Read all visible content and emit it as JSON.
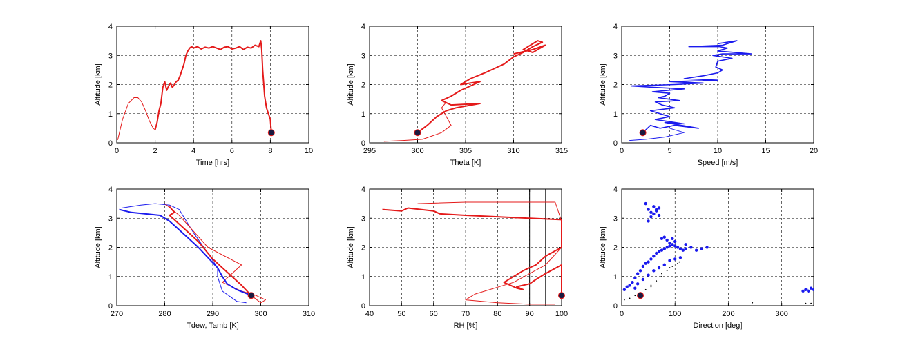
{
  "colors": {
    "red": "#e41a1a",
    "blue": "#1a1aee",
    "marker": "#1a1a40",
    "black": "#000000"
  },
  "chart_data": [
    {
      "type": "line",
      "xlabel": "Time [hrs]",
      "ylabel": "Altitude [km]",
      "xlim": [
        0,
        10
      ],
      "ylim": [
        0,
        4
      ],
      "xticks": [
        0,
        2,
        4,
        6,
        8,
        10
      ],
      "yticks": [
        0,
        1,
        2,
        3,
        4
      ],
      "grid": true,
      "series": [
        {
          "color": "red",
          "width": 1,
          "x": [
            0.05,
            0.3,
            0.6,
            0.9,
            1.1,
            1.3,
            1.5,
            1.7,
            1.9,
            2.0
          ],
          "y": [
            0.1,
            0.8,
            1.35,
            1.55,
            1.55,
            1.4,
            1.1,
            0.75,
            0.5,
            0.45
          ]
        },
        {
          "color": "red",
          "width": 2,
          "x": [
            2.0,
            2.1,
            2.2,
            2.3,
            2.4,
            2.5,
            2.6,
            2.7,
            2.8,
            2.9,
            3.0,
            3.1,
            3.2,
            3.3,
            3.5,
            3.6,
            3.7,
            3.8,
            3.9,
            4.0,
            4.2,
            4.4,
            4.6,
            4.8,
            5.0,
            5.2,
            5.4,
            5.6,
            5.8,
            6.0,
            6.2,
            6.4,
            6.6,
            6.8,
            7.0,
            7.2,
            7.4,
            7.5,
            7.55,
            7.6,
            7.7,
            7.8,
            7.9,
            8.0,
            8.05
          ],
          "y": [
            0.45,
            0.7,
            1.1,
            1.35,
            1.9,
            2.1,
            1.8,
            1.95,
            2.05,
            1.9,
            2.0,
            2.1,
            2.15,
            2.3,
            2.7,
            3.0,
            3.15,
            3.25,
            3.3,
            3.25,
            3.3,
            3.22,
            3.28,
            3.25,
            3.3,
            3.25,
            3.2,
            3.28,
            3.3,
            3.22,
            3.25,
            3.3,
            3.2,
            3.28,
            3.25,
            3.35,
            3.3,
            3.5,
            3.2,
            2.5,
            1.6,
            1.2,
            1.0,
            0.8,
            0.35
          ]
        }
      ],
      "marker": {
        "x": 8.05,
        "y": 0.35
      }
    },
    {
      "type": "line",
      "xlabel": "Theta [K]",
      "ylabel": "Altitude [km]",
      "xlim": [
        295,
        315
      ],
      "ylim": [
        0,
        4
      ],
      "xticks": [
        295,
        300,
        305,
        310,
        315
      ],
      "yticks": [
        0,
        1,
        2,
        3,
        4
      ],
      "grid": true,
      "series": [
        {
          "color": "red",
          "width": 1,
          "x": [
            296.5,
            298.5,
            300.5,
            302.5,
            303.5,
            303.0,
            302.5,
            303.0
          ],
          "y": [
            0.05,
            0.08,
            0.12,
            0.35,
            0.6,
            0.9,
            1.2,
            1.4
          ]
        },
        {
          "color": "red",
          "width": 2,
          "x": [
            300,
            301,
            302,
            303,
            304,
            306.5,
            303.5,
            302.5,
            303.5,
            304.5,
            305.5,
            306.5,
            304.5,
            305.5,
            307,
            309,
            310,
            311,
            312,
            313,
            312.5,
            311,
            312,
            313.3,
            312,
            310
          ],
          "y": [
            0.35,
            0.6,
            0.9,
            1.1,
            1.2,
            1.35,
            1.3,
            1.45,
            1.6,
            1.8,
            1.95,
            2.1,
            2.0,
            2.2,
            2.4,
            2.7,
            2.95,
            3.1,
            3.3,
            3.45,
            3.5,
            3.2,
            3.1,
            3.35,
            3.2,
            3.05
          ]
        }
      ],
      "marker": {
        "x": 300,
        "y": 0.35
      }
    },
    {
      "type": "line",
      "xlabel": "Speed [m/s]",
      "ylabel": "Altitude [km]",
      "xlim": [
        0,
        20
      ],
      "ylim": [
        0,
        4
      ],
      "xticks": [
        0,
        5,
        10,
        15,
        20
      ],
      "yticks": [
        0,
        1,
        2,
        3,
        4
      ],
      "grid": true,
      "series": [
        {
          "color": "blue",
          "width": 1,
          "x": [
            0.8,
            2.5,
            4.5,
            6.5,
            5.0
          ],
          "y": [
            0.08,
            0.12,
            0.2,
            0.35,
            0.5
          ]
        },
        {
          "color": "blue",
          "width": 1.6,
          "x": [
            2.2,
            3.0,
            4.0,
            5.5,
            8.0,
            4.5,
            6.5,
            3.5,
            5.0,
            4.0,
            3.0,
            5.5,
            4.2,
            3.5,
            6.0,
            3.8,
            4.5,
            5.0,
            3.2,
            4.8,
            6.5,
            3.5,
            1.0,
            5.5,
            8.5,
            5.0,
            10.0,
            6.5,
            8.5,
            10.0,
            10.5,
            9.8,
            10.0,
            11.5,
            9.5,
            10.5,
            13.5,
            10.0,
            11.0,
            10.2,
            7.0,
            10.5,
            12.0,
            10.0
          ],
          "y": [
            0.35,
            0.6,
            0.5,
            0.6,
            0.5,
            0.7,
            0.65,
            0.8,
            0.9,
            1.0,
            1.1,
            1.2,
            1.3,
            1.4,
            1.45,
            1.55,
            1.6,
            1.7,
            1.75,
            1.8,
            1.85,
            1.9,
            1.95,
            2.0,
            2.05,
            2.1,
            2.15,
            2.2,
            2.3,
            2.4,
            2.5,
            2.6,
            2.8,
            2.9,
            3.0,
            3.05,
            3.05,
            3.15,
            3.25,
            3.3,
            3.3,
            3.35,
            3.5,
            3.4
          ]
        }
      ],
      "marker": {
        "x": 2.2,
        "y": 0.35
      }
    },
    {
      "type": "line",
      "xlabel": "Tdew, Tamb [K]",
      "ylabel": "Altitude [km]",
      "xlim": [
        270,
        310
      ],
      "ylim": [
        0,
        4
      ],
      "xticks": [
        270,
        280,
        290,
        300,
        310
      ],
      "yticks": [
        0,
        1,
        2,
        3,
        4
      ],
      "grid": true,
      "series": [
        {
          "color": "blue",
          "width": 1,
          "x": [
            271,
            275,
            278,
            281,
            283,
            286,
            289,
            291,
            291,
            292,
            295,
            297
          ],
          "y": [
            3.35,
            3.45,
            3.5,
            3.45,
            3.3,
            2.5,
            1.8,
            1.3,
            1.0,
            0.5,
            0.15,
            0.1
          ]
        },
        {
          "color": "red",
          "width": 1,
          "x": [
            280,
            283,
            289,
            296,
            292,
            296,
            299,
            301,
            300,
            298
          ],
          "y": [
            3.5,
            3.1,
            2.0,
            1.4,
            0.8,
            0.5,
            0.35,
            0.2,
            0.1,
            0.35
          ]
        },
        {
          "color": "blue",
          "width": 2,
          "x": [
            270.5,
            273,
            276,
            279,
            281,
            283,
            285,
            287,
            289,
            291,
            292,
            293,
            295,
            297,
            298
          ],
          "y": [
            3.3,
            3.2,
            3.15,
            3.1,
            2.9,
            2.6,
            2.3,
            2.0,
            1.65,
            1.3,
            1.0,
            0.75,
            0.55,
            0.42,
            0.35
          ]
        },
        {
          "color": "red",
          "width": 2,
          "x": [
            281,
            282,
            281,
            283,
            285,
            287,
            288,
            289,
            290,
            292,
            294,
            296,
            298
          ],
          "y": [
            3.4,
            3.2,
            3.1,
            2.8,
            2.5,
            2.2,
            2.0,
            1.8,
            1.6,
            1.3,
            1.0,
            0.7,
            0.35
          ]
        }
      ],
      "marker": {
        "x": 298,
        "y": 0.35
      }
    },
    {
      "type": "line",
      "xlabel": "RH [%]",
      "ylabel": "Altitude [km]",
      "xlim": [
        40,
        100
      ],
      "ylim": [
        0,
        4
      ],
      "xticks": [
        40,
        50,
        60,
        70,
        80,
        90,
        100
      ],
      "yticks": [
        0,
        1,
        2,
        3,
        4
      ],
      "grid": true,
      "vlines": [
        90,
        95
      ],
      "series": [
        {
          "color": "red",
          "width": 1,
          "x": [
            55,
            70,
            98,
            100,
            100,
            95,
            85,
            73,
            70,
            80,
            90,
            98
          ],
          "y": [
            3.5,
            3.55,
            3.55,
            2.9,
            2.0,
            1.4,
            0.8,
            0.4,
            0.2,
            0.1,
            0.05,
            0.05
          ]
        },
        {
          "color": "red",
          "width": 2,
          "x": [
            44,
            50,
            52,
            60,
            62,
            70,
            80,
            90,
            100,
            100,
            95,
            92,
            88,
            85,
            82,
            86,
            88,
            86,
            90,
            92,
            95,
            100,
            100
          ],
          "y": [
            3.3,
            3.25,
            3.35,
            3.25,
            3.15,
            3.1,
            3.05,
            3.0,
            2.95,
            2.0,
            1.7,
            1.4,
            1.2,
            1.0,
            0.8,
            0.6,
            0.55,
            0.65,
            0.75,
            0.9,
            1.1,
            1.4,
            0.35
          ]
        }
      ],
      "marker": {
        "x": 100,
        "y": 0.35
      }
    },
    {
      "type": "scatter",
      "xlabel": "Direction [deg]",
      "ylabel": "Altitude [km]",
      "xlim": [
        0,
        360
      ],
      "ylim": [
        0,
        4
      ],
      "xticks": [
        0,
        100,
        200,
        300
      ],
      "yticks": [
        0,
        1,
        2,
        3,
        4
      ],
      "grid": true,
      "series": [
        {
          "color": "black",
          "style": "dots",
          "x": [
            5,
            15,
            25,
            35,
            45,
            55,
            65,
            75,
            85,
            95,
            105,
            35,
            55,
            75,
            90,
            108,
            245,
            345,
            355
          ],
          "y": [
            0.2,
            0.25,
            0.35,
            0.45,
            0.55,
            0.65,
            0.85,
            1.0,
            1.2,
            1.35,
            1.45,
            0.4,
            0.7,
            1.1,
            1.3,
            1.5,
            0.1,
            0.08,
            0.08
          ]
        },
        {
          "color": "blue",
          "style": "markers",
          "x": [
            5,
            10,
            15,
            20,
            25,
            30,
            35,
            40,
            45,
            50,
            55,
            60,
            65,
            70,
            75,
            80,
            85,
            90,
            95,
            100,
            105,
            110,
            115,
            120,
            130,
            140,
            150,
            160,
            25,
            30,
            40,
            50,
            60,
            70,
            80,
            90,
            100,
            110,
            75,
            80,
            85,
            90,
            95,
            100,
            120,
            45,
            50,
            55,
            60,
            65,
            70,
            50,
            55,
            60,
            65,
            70,
            340,
            345,
            350,
            355,
            360
          ],
          "y": [
            0.55,
            0.65,
            0.7,
            0.8,
            0.95,
            1.1,
            1.2,
            1.35,
            1.45,
            1.5,
            1.6,
            1.7,
            1.8,
            1.85,
            1.9,
            1.95,
            2.0,
            2.05,
            2.1,
            2.05,
            2.0,
            1.95,
            1.9,
            1.95,
            2.0,
            1.9,
            1.95,
            2.0,
            0.6,
            0.75,
            0.9,
            1.05,
            1.2,
            1.3,
            1.4,
            1.55,
            1.6,
            1.65,
            2.3,
            2.35,
            2.25,
            2.15,
            2.3,
            2.2,
            2.1,
            3.5,
            3.3,
            3.2,
            3.4,
            3.3,
            3.1,
            2.9,
            3.05,
            3.15,
            3.25,
            3.35,
            0.5,
            0.55,
            0.5,
            0.6,
            0.55
          ]
        }
      ],
      "marker": {
        "x": 35,
        "y": 0.35
      }
    }
  ]
}
